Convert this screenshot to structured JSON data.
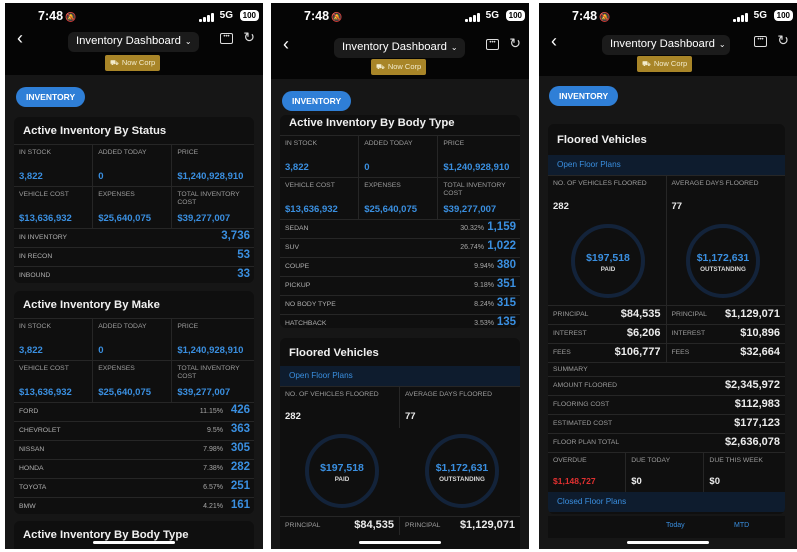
{
  "status": {
    "time": "7:48",
    "net": "5G",
    "battery": "100"
  },
  "header": {
    "title": "Inventory Dashboard",
    "org": "Now Corp"
  },
  "pill": "INVENTORY",
  "status_section": {
    "title": "Active Inventory By Status",
    "metrics": [
      {
        "label": "IN STOCK",
        "value": "3,822"
      },
      {
        "label": "ADDED TODAY",
        "value": "0"
      },
      {
        "label": "PRICE",
        "value": "$1,240,928,910"
      },
      {
        "label": "VEHICLE COST",
        "value": "$13,636,932"
      },
      {
        "label": "EXPENSES",
        "value": "$25,640,075"
      },
      {
        "label": "TOTAL INVENTORY COST",
        "value": "$39,277,007"
      }
    ],
    "rows": [
      {
        "label": "IN INVENTORY",
        "value": "3,736"
      },
      {
        "label": "IN RECON",
        "value": "53"
      },
      {
        "label": "INBOUND",
        "value": "33"
      }
    ]
  },
  "make_section": {
    "title": "Active Inventory By Make",
    "metrics": [
      {
        "label": "IN STOCK",
        "value": "3,822"
      },
      {
        "label": "ADDED TODAY",
        "value": "0"
      },
      {
        "label": "PRICE",
        "value": "$1,240,928,910"
      },
      {
        "label": "VEHICLE COST",
        "value": "$13,636,932"
      },
      {
        "label": "EXPENSES",
        "value": "$25,640,075"
      },
      {
        "label": "TOTAL INVENTORY COST",
        "value": "$39,277,007"
      }
    ],
    "rows": [
      {
        "label": "FORD",
        "pct": "11.15%",
        "value": "426"
      },
      {
        "label": "CHEVROLET",
        "pct": "9.5%",
        "value": "363"
      },
      {
        "label": "NISSAN",
        "pct": "7.98%",
        "value": "305"
      },
      {
        "label": "HONDA",
        "pct": "7.38%",
        "value": "282"
      },
      {
        "label": "TOYOTA",
        "pct": "6.57%",
        "value": "251"
      },
      {
        "label": "BMW",
        "pct": "4.21%",
        "value": "161"
      }
    ]
  },
  "body_section": {
    "title": "Active Inventory By Body Type",
    "metrics": [
      {
        "label": "IN STOCK",
        "value": "3,822"
      },
      {
        "label": "ADDED TODAY",
        "value": "0"
      },
      {
        "label": "PRICE",
        "value": "$1,240,928,910"
      },
      {
        "label": "VEHICLE COST",
        "value": "$13,636,932"
      },
      {
        "label": "EXPENSES",
        "value": "$25,640,075"
      },
      {
        "label": "TOTAL INVENTORY COST",
        "value": "$39,277,007"
      }
    ],
    "rows": [
      {
        "label": "SEDAN",
        "pct": "30.32%",
        "value": "1,159"
      },
      {
        "label": "SUV",
        "pct": "26.74%",
        "value": "1,022"
      },
      {
        "label": "COUPE",
        "pct": "9.94%",
        "value": "380"
      },
      {
        "label": "PICKUP",
        "pct": "9.18%",
        "value": "351"
      },
      {
        "label": "NO BODY TYPE",
        "pct": "8.24%",
        "value": "315"
      },
      {
        "label": "HATCHBACK",
        "pct": "3.53%",
        "value": "135"
      }
    ]
  },
  "floored": {
    "title": "Floored Vehicles",
    "open": "Open Floor Plans",
    "closed": "Closed Floor Plans",
    "count_label": "NO. OF VEHICLES FLOORED",
    "count": "282",
    "avg_label": "AVERAGE DAYS FLOORED",
    "avg": "77",
    "paid": "$197,518",
    "paid_label": "PAID",
    "outstanding": "$1,172,631",
    "outstanding_label": "OUTSTANDING",
    "left": [
      {
        "label": "PRINCIPAL",
        "value": "$84,535"
      },
      {
        "label": "INTEREST",
        "value": "$6,206"
      },
      {
        "label": "FEES",
        "value": "$106,777"
      }
    ],
    "right": [
      {
        "label": "PRINCIPAL",
        "value": "$1,129,071"
      },
      {
        "label": "INTEREST",
        "value": "$10,896"
      },
      {
        "label": "FEES",
        "value": "$32,664"
      }
    ],
    "summary_label": "SUMMARY",
    "summary": [
      {
        "label": "AMOUNT FLOORED",
        "value": "$2,345,972"
      },
      {
        "label": "FLOORING COST",
        "value": "$112,983"
      },
      {
        "label": "ESTIMATED COST",
        "value": "$177,123"
      },
      {
        "label": "FLOOR PLAN TOTAL",
        "value": "$2,636,078"
      }
    ],
    "due": [
      {
        "label": "OVERDUE",
        "value": "$1,148,727"
      },
      {
        "label": "DUE TODAY",
        "value": "$0"
      },
      {
        "label": "DUE THIS WEEK",
        "value": "$0"
      }
    ],
    "tabs": [
      "Today",
      "MTD"
    ]
  }
}
